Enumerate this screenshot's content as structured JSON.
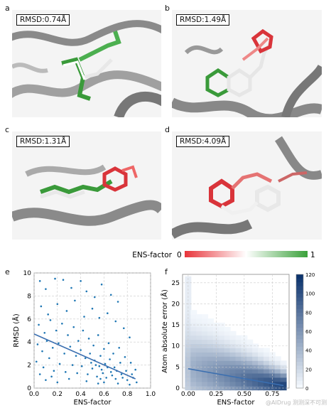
{
  "panels": {
    "a": {
      "letter": "a",
      "rmsd": "RMSD:0.74Å"
    },
    "b": {
      "letter": "b",
      "rmsd": "RMSD:1.49Å"
    },
    "c": {
      "letter": "c",
      "rmsd": "RMSD:1.31Å"
    },
    "d": {
      "letter": "d",
      "rmsd": "RMSD:4.09Å"
    }
  },
  "ens_legend": {
    "label": "ENS-factor",
    "min": "0",
    "max": "1",
    "colors": {
      "low": "#e8343a",
      "mid": "#ffffff",
      "high": "#3aa13a"
    }
  },
  "watermark": "@AIDrug 测测深不可测",
  "chart_data": [
    {
      "panel": "e",
      "type": "scatter",
      "xlabel": "ENS-factor",
      "ylabel": "RMSD (Å)",
      "xlim": [
        0.0,
        1.0
      ],
      "ylim": [
        0,
        10
      ],
      "xticks": [
        "0.0",
        "0.2",
        "0.4",
        "0.6",
        "0.8",
        "1.0"
      ],
      "yticks": [
        "0",
        "2",
        "4",
        "6",
        "8",
        "10"
      ],
      "grid": true,
      "fit_line": {
        "x": [
          0.0,
          0.87
        ],
        "y": [
          4.7,
          0.8
        ]
      },
      "points": [
        [
          0.05,
          9.3
        ],
        [
          0.1,
          8.6
        ],
        [
          0.18,
          9.5
        ],
        [
          0.25,
          9.4
        ],
        [
          0.32,
          8.7
        ],
        [
          0.4,
          9.3
        ],
        [
          0.45,
          8.4
        ],
        [
          0.52,
          7.9
        ],
        [
          0.58,
          9.0
        ],
        [
          0.66,
          8.1
        ],
        [
          0.72,
          7.5
        ],
        [
          0.06,
          7.1
        ],
        [
          0.12,
          6.4
        ],
        [
          0.2,
          7.3
        ],
        [
          0.28,
          6.7
        ],
        [
          0.35,
          7.6
        ],
        [
          0.43,
          6.2
        ],
        [
          0.5,
          6.9
        ],
        [
          0.56,
          6.1
        ],
        [
          0.63,
          6.5
        ],
        [
          0.7,
          5.8
        ],
        [
          0.77,
          5.2
        ],
        [
          0.82,
          4.4
        ],
        [
          0.04,
          5.5
        ],
        [
          0.09,
          4.8
        ],
        [
          0.14,
          5.9
        ],
        [
          0.19,
          5.0
        ],
        [
          0.24,
          5.6
        ],
        [
          0.29,
          4.6
        ],
        [
          0.34,
          5.3
        ],
        [
          0.38,
          4.1
        ],
        [
          0.42,
          5.0
        ],
        [
          0.47,
          4.3
        ],
        [
          0.51,
          3.7
        ],
        [
          0.55,
          4.6
        ],
        [
          0.6,
          3.4
        ],
        [
          0.64,
          3.9
        ],
        [
          0.68,
          3.0
        ],
        [
          0.73,
          3.5
        ],
        [
          0.78,
          2.7
        ],
        [
          0.83,
          2.2
        ],
        [
          0.87,
          1.6
        ],
        [
          0.03,
          3.8
        ],
        [
          0.07,
          3.2
        ],
        [
          0.11,
          4.1
        ],
        [
          0.16,
          3.5
        ],
        [
          0.21,
          3.9
        ],
        [
          0.26,
          3.0
        ],
        [
          0.31,
          3.6
        ],
        [
          0.36,
          2.8
        ],
        [
          0.4,
          3.3
        ],
        [
          0.44,
          2.6
        ],
        [
          0.48,
          3.0
        ],
        [
          0.52,
          2.4
        ],
        [
          0.57,
          2.8
        ],
        [
          0.61,
          2.1
        ],
        [
          0.65,
          2.5
        ],
        [
          0.69,
          1.8
        ],
        [
          0.74,
          2.2
        ],
        [
          0.79,
          1.5
        ],
        [
          0.84,
          1.2
        ],
        [
          0.02,
          2.3
        ],
        [
          0.08,
          1.8
        ],
        [
          0.13,
          2.6
        ],
        [
          0.17,
          1.5
        ],
        [
          0.22,
          2.1
        ],
        [
          0.27,
          1.4
        ],
        [
          0.33,
          2.0
        ],
        [
          0.37,
          1.3
        ],
        [
          0.41,
          1.9
        ],
        [
          0.46,
          1.2
        ],
        [
          0.5,
          1.7
        ],
        [
          0.54,
          1.0
        ],
        [
          0.58,
          1.6
        ],
        [
          0.62,
          0.9
        ],
        [
          0.66,
          1.4
        ],
        [
          0.7,
          0.8
        ],
        [
          0.75,
          1.2
        ],
        [
          0.8,
          0.7
        ],
        [
          0.85,
          0.9
        ],
        [
          0.88,
          0.5
        ],
        [
          0.05,
          1.2
        ],
        [
          0.1,
          0.7
        ],
        [
          0.15,
          1.0
        ],
        [
          0.2,
          0.5
        ],
        [
          0.3,
          0.8
        ],
        [
          0.45,
          0.6
        ],
        [
          0.55,
          0.4
        ],
        [
          0.6,
          0.5
        ],
        [
          0.72,
          0.4
        ],
        [
          0.82,
          0.3
        ],
        [
          0.56,
          1.9
        ],
        [
          0.59,
          1.3
        ],
        [
          0.63,
          1.8
        ],
        [
          0.67,
          1.1
        ],
        [
          0.71,
          1.5
        ],
        [
          0.76,
          0.9
        ],
        [
          0.53,
          2.0
        ],
        [
          0.49,
          2.2
        ],
        [
          0.57,
          0.8
        ]
      ]
    },
    {
      "panel": "f",
      "type": "heatmap",
      "xlabel": "ENS-factor",
      "ylabel": "Atom absolute error (Å)",
      "xlim": [
        -0.05,
        0.9
      ],
      "ylim": [
        0,
        27
      ],
      "xticks": [
        "0.00",
        "0.25",
        "0.50",
        "0.75"
      ],
      "yticks": [
        "0",
        "5",
        "10",
        "15",
        "20",
        "25"
      ],
      "grid": true,
      "colorbar": {
        "min": 0,
        "max": 120,
        "ticks": [
          "0",
          "20",
          "40",
          "60",
          "80",
          "100",
          "120"
        ]
      },
      "fit_line": {
        "x": [
          0.0,
          0.85
        ],
        "y": [
          4.6,
          0.6
        ]
      }
    }
  ]
}
